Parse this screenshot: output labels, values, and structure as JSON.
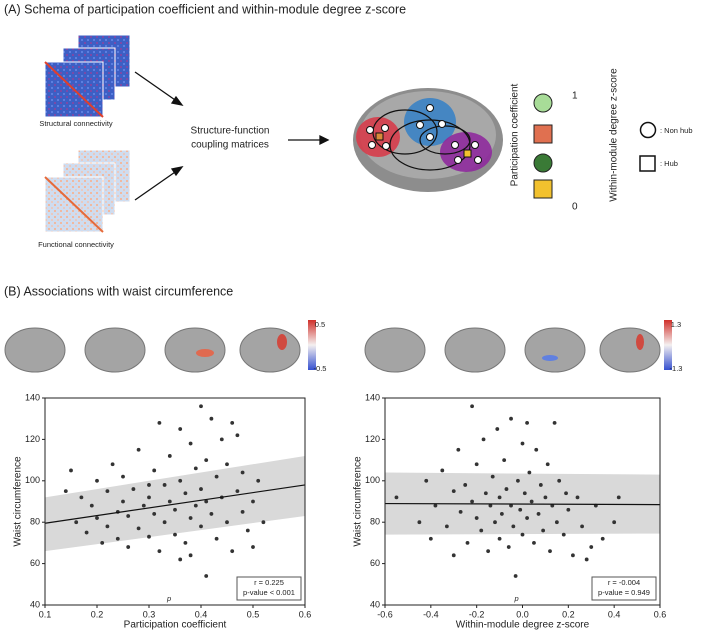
{
  "panel_a": {
    "title": "(A) Schema of participation coefficient and within-module degree z-score",
    "structural": "Structural connectivity",
    "functional": "Functional connectivity",
    "coupling": [
      "Structure-function",
      "coupling matrices"
    ],
    "pc_label": "Participation coefficient",
    "pc_high": "1",
    "pc_low": "0",
    "wd_label": "Within-module degree z-score",
    "non_hub": ": Non hub",
    "hub": ": Hub"
  },
  "panel_b": {
    "title": "(B) Associations with waist circumference"
  },
  "chart_data": [
    {
      "type": "scatter",
      "xlabel": "Participation coefficient",
      "ylabel": "Waist circumference",
      "color": "#333333",
      "x": [
        0.14,
        0.15,
        0.16,
        0.17,
        0.18,
        0.19,
        0.2,
        0.2,
        0.21,
        0.22,
        0.22,
        0.23,
        0.24,
        0.24,
        0.25,
        0.25,
        0.26,
        0.26,
        0.27,
        0.28,
        0.28,
        0.29,
        0.3,
        0.3,
        0.31,
        0.31,
        0.32,
        0.32,
        0.33,
        0.33,
        0.34,
        0.34,
        0.35,
        0.35,
        0.36,
        0.36,
        0.37,
        0.37,
        0.38,
        0.38,
        0.38,
        0.39,
        0.39,
        0.4,
        0.4,
        0.4,
        0.41,
        0.41,
        0.41,
        0.42,
        0.42,
        0.43,
        0.43,
        0.44,
        0.44,
        0.45,
        0.45,
        0.46,
        0.46,
        0.47,
        0.47,
        0.48,
        0.48,
        0.49,
        0.5,
        0.5,
        0.51,
        0.52,
        0.36,
        0.3
      ],
      "values": [
        95,
        105,
        80,
        92,
        75,
        88,
        100,
        82,
        70,
        95,
        78,
        108,
        85,
        72,
        90,
        102,
        68,
        83,
        96,
        115,
        77,
        88,
        92,
        73,
        105,
        84,
        128,
        66,
        98,
        80,
        112,
        90,
        86,
        74,
        125,
        100,
        94,
        70,
        118,
        82,
        64,
        106,
        88,
        136,
        96,
        78,
        54,
        110,
        90,
        130,
        84,
        102,
        72,
        120,
        92,
        80,
        108,
        128,
        66,
        95,
        122,
        85,
        104,
        76,
        90,
        68,
        100,
        80,
        62,
        98
      ],
      "fit": {
        "x": [
          0.1,
          0.6
        ],
        "y": [
          79.5,
          98
        ],
        "lower": [
          66,
          83
        ],
        "upper": [
          92,
          112
        ]
      },
      "annotation": [
        "r = 0.225",
        "p-value < 0.001"
      ],
      "stray": "p",
      "colorbar": [
        0.5,
        -0.5
      ],
      "xlim": [
        0.1,
        0.6
      ],
      "xticks": [
        0.1,
        0.2,
        0.3,
        0.4,
        0.5,
        0.6
      ],
      "ylim": [
        40,
        140
      ],
      "yticks": [
        40,
        60,
        80,
        100,
        120,
        140
      ]
    },
    {
      "type": "scatter",
      "xlabel": "Within-module degree z-score",
      "ylabel": "Waist circumference",
      "color": "#333333",
      "x": [
        -0.55,
        -0.45,
        -0.42,
        -0.4,
        -0.38,
        -0.35,
        -0.33,
        -0.3,
        -0.3,
        -0.28,
        -0.27,
        -0.25,
        -0.24,
        -0.22,
        -0.22,
        -0.2,
        -0.2,
        -0.18,
        -0.17,
        -0.16,
        -0.15,
        -0.14,
        -0.13,
        -0.12,
        -0.11,
        -0.1,
        -0.1,
        -0.09,
        -0.08,
        -0.07,
        -0.06,
        -0.05,
        -0.05,
        -0.04,
        -0.03,
        -0.02,
        -0.01,
        0.0,
        0.0,
        0.01,
        0.02,
        0.02,
        0.03,
        0.04,
        0.05,
        0.06,
        0.07,
        0.08,
        0.09,
        0.1,
        0.11,
        0.12,
        0.13,
        0.14,
        0.15,
        0.16,
        0.18,
        0.19,
        0.2,
        0.22,
        0.24,
        0.26,
        0.28,
        0.3,
        0.32,
        0.35,
        0.4,
        0.42
      ],
      "values": [
        92,
        80,
        100,
        72,
        88,
        105,
        78,
        95,
        64,
        115,
        85,
        98,
        70,
        136,
        90,
        82,
        108,
        76,
        120,
        94,
        66,
        88,
        102,
        80,
        125,
        92,
        72,
        84,
        110,
        96,
        68,
        130,
        88,
        78,
        54,
        100,
        86,
        118,
        74,
        94,
        128,
        82,
        104,
        90,
        70,
        115,
        84,
        98,
        76,
        92,
        108,
        66,
        88,
        128,
        80,
        100,
        74,
        94,
        86,
        64,
        92,
        78,
        62,
        68,
        88,
        72,
        80,
        92
      ],
      "fit": {
        "x": [
          -0.6,
          0.6
        ],
        "y": [
          89,
          88.5
        ],
        "lower": [
          74,
          74.5
        ],
        "upper": [
          104,
          103
        ]
      },
      "annotation": [
        "r = -0.004",
        "p-value = 0.949"
      ],
      "stray": "p",
      "colorbar": [
        1.3,
        -1.3
      ],
      "xlim": [
        -0.6,
        0.6
      ],
      "xticks": [
        -0.6,
        -0.4,
        -0.2,
        0.0,
        0.2,
        0.4,
        0.6
      ],
      "ylim": [
        40,
        140
      ],
      "yticks": [
        40,
        60,
        80,
        100,
        120,
        140
      ]
    }
  ]
}
